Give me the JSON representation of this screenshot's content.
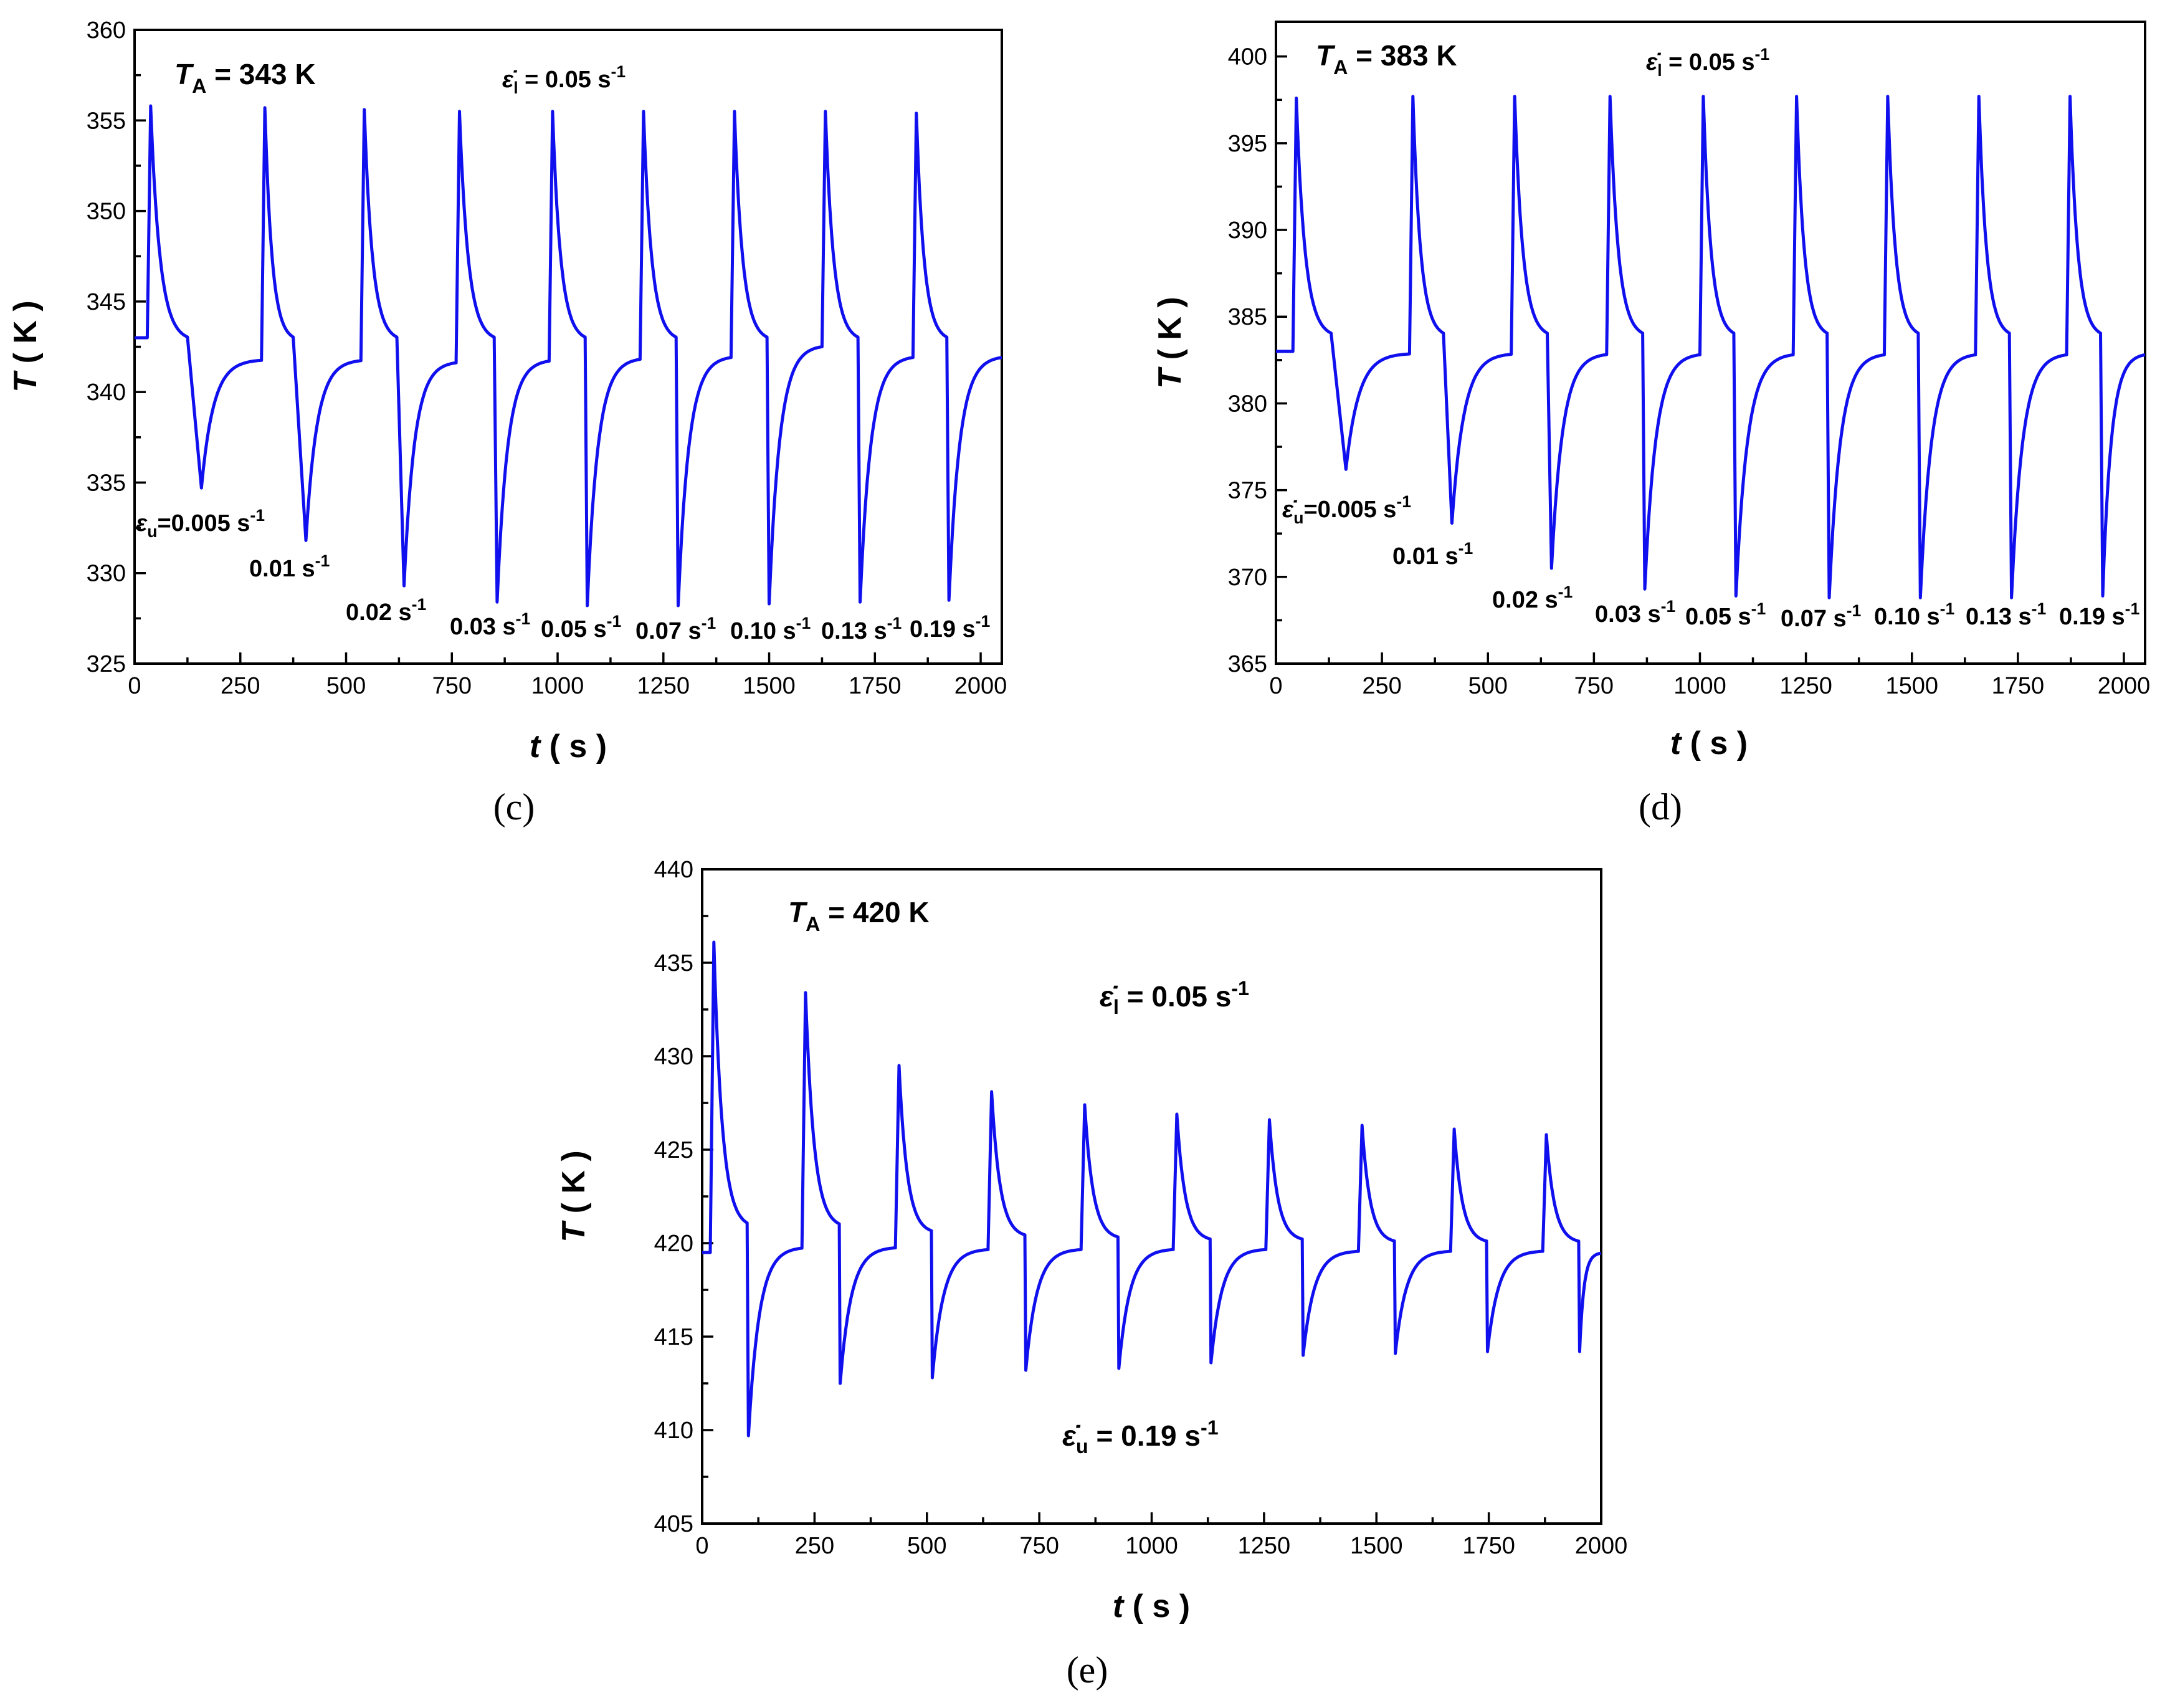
{
  "charts": {
    "c": {
      "panel_label": "(c)",
      "title_var": "T",
      "title_sub": "A",
      "title_rest": " = 343 K",
      "loading_var": "ε̇",
      "loading_sub": "l",
      "loading_rest": " = 0.05 s",
      "loading_sup": "-1",
      "unloading_var": "ε",
      "unloading_sub": "u",
      "unloading_first": "=0.005 s",
      "unloading_first_sup": "-1",
      "rate_labels": [
        "0.01 s",
        "0.02 s",
        "0.03 s",
        "0.05 s",
        "0.07 s",
        "0.10 s",
        "0.13 s",
        "0.19 s"
      ],
      "rate_sup": "-1",
      "ylabel_var": "T",
      "ylabel_rest": " ( K )",
      "xlabel_var": "t",
      "xlabel_rest": " ( s )"
    },
    "d": {
      "panel_label": "(d)",
      "title_var": "T",
      "title_sub": "A",
      "title_rest": " = 383 K",
      "loading_var": "ε̇",
      "loading_sub": "l",
      "loading_rest": " = 0.05 s",
      "loading_sup": "-1",
      "unloading_var": "ε̇",
      "unloading_sub": "u",
      "unloading_first": "=0.005 s",
      "unloading_first_sup": "-1",
      "rate_labels": [
        "0.01 s",
        "0.02 s",
        "0.03 s",
        "0.05 s",
        "0.07 s",
        "0.10 s",
        "0.13 s",
        "0.19 s"
      ],
      "rate_sup": "-1",
      "ylabel_var": "T",
      "ylabel_rest": " ( K )",
      "xlabel_var": "t",
      "xlabel_rest": " ( s )"
    },
    "e": {
      "panel_label": "(e)",
      "title_var": "T",
      "title_sub": "A",
      "title_rest": " = 420 K",
      "loading_var": "ε̇",
      "loading_sub": "l",
      "loading_rest": " = 0.05 s",
      "loading_sup": "-1",
      "unloading_var": "ε̇",
      "unloading_sub": "u",
      "unloading_rest": " = 0.19 s",
      "unloading_sup": "-1",
      "ylabel_var": "T",
      "ylabel_rest": " ( K )",
      "xlabel_var": "t",
      "xlabel_rest": " ( s )"
    }
  },
  "chart_data": [
    {
      "id": "c",
      "type": "line",
      "title": "T_A = 343 K",
      "xlabel": "t ( s )",
      "ylabel": "T ( K )",
      "xlim": [
        0,
        2050
      ],
      "ylim": [
        325,
        360
      ],
      "xticks": [
        0,
        250,
        500,
        750,
        1000,
        1250,
        1500,
        1750,
        2000
      ],
      "yticks": [
        325,
        330,
        335,
        340,
        345,
        350,
        355,
        360
      ],
      "baseline": 343,
      "annotations": [
        "ε̇_l = 0.05 s^-1",
        "ε_u =0.005 s^-1",
        "0.01 s^-1",
        "0.02 s^-1",
        "0.03 s^-1",
        "0.05 s^-1",
        "0.07 s^-1",
        "0.10 s^-1",
        "0.13 s^-1",
        "0.19 s^-1"
      ],
      "series": [
        {
          "name": "T",
          "color": "#1010ee",
          "cycles": [
            {
              "t_load": 30,
              "peak": 355.8,
              "t_unload": 125,
              "pre_unload": 342.8,
              "trough": 334.7,
              "t_trough": 158,
              "plateau": 341.8
            },
            {
              "t_load": 300,
              "peak": 355.7,
              "t_unload": 375,
              "pre_unload": 342.8,
              "trough": 331.8,
              "t_trough": 405,
              "plateau": 341.8
            },
            {
              "t_load": 535,
              "peak": 355.6,
              "t_unload": 620,
              "pre_unload": 342.8,
              "trough": 329.3,
              "t_trough": 637,
              "plateau": 341.7
            },
            {
              "t_load": 760,
              "peak": 355.5,
              "t_unload": 850,
              "pre_unload": 342.8,
              "trough": 328.4,
              "t_trough": 857,
              "plateau": 341.8
            },
            {
              "t_load": 980,
              "peak": 355.5,
              "t_unload": 1065,
              "pre_unload": 342.8,
              "trough": 328.2,
              "t_trough": 1070,
              "plateau": 341.9
            },
            {
              "t_load": 1195,
              "peak": 355.5,
              "t_unload": 1280,
              "pre_unload": 342.8,
              "trough": 328.2,
              "t_trough": 1285,
              "plateau": 342.0
            },
            {
              "t_load": 1410,
              "peak": 355.5,
              "t_unload": 1495,
              "pre_unload": 342.8,
              "trough": 328.3,
              "t_trough": 1500,
              "plateau": 342.6
            },
            {
              "t_load": 1625,
              "peak": 355.5,
              "t_unload": 1710,
              "pre_unload": 342.8,
              "trough": 328.4,
              "t_trough": 1715,
              "plateau": 342.0
            },
            {
              "t_load": 1840,
              "peak": 355.4,
              "t_unload": 1920,
              "pre_unload": 342.8,
              "trough": 328.5,
              "t_trough": 1925,
              "plateau": 342.0
            }
          ]
        }
      ]
    },
    {
      "id": "d",
      "type": "line",
      "title": "T_A = 383 K",
      "xlabel": "t ( s )",
      "ylabel": "T ( K )",
      "xlim": [
        0,
        2050
      ],
      "ylim": [
        365,
        402
      ],
      "xticks": [
        0,
        250,
        500,
        750,
        1000,
        1250,
        1500,
        1750,
        2000
      ],
      "yticks": [
        365,
        370,
        375,
        380,
        385,
        390,
        395,
        400
      ],
      "baseline": 383,
      "annotations": [
        "ε̇_l = 0.05 s^-1",
        "ε̇_u =0.005 s^-1",
        "0.01 s^-1",
        "0.02 s^-1",
        "0.03 s^-1",
        "0.05 s^-1",
        "0.07 s^-1",
        "0.10 s^-1",
        "0.13 s^-1",
        "0.19 s^-1"
      ],
      "series": [
        {
          "name": "T",
          "color": "#1010ee",
          "cycles": [
            {
              "t_load": 40,
              "peak": 397.6,
              "t_unload": 130,
              "pre_unload": 383.8,
              "trough": 376.2,
              "t_trough": 165,
              "plateau": 382.9
            },
            {
              "t_load": 315,
              "peak": 397.7,
              "t_unload": 395,
              "pre_unload": 383.8,
              "trough": 373.1,
              "t_trough": 415,
              "plateau": 382.9
            },
            {
              "t_load": 555,
              "peak": 397.7,
              "t_unload": 640,
              "pre_unload": 383.8,
              "trough": 370.5,
              "t_trough": 650,
              "plateau": 382.9
            },
            {
              "t_load": 780,
              "peak": 397.7,
              "t_unload": 865,
              "pre_unload": 383.8,
              "trough": 369.3,
              "t_trough": 870,
              "plateau": 382.9
            },
            {
              "t_load": 1000,
              "peak": 397.7,
              "t_unload": 1080,
              "pre_unload": 383.8,
              "trough": 368.9,
              "t_trough": 1085,
              "plateau": 382.9
            },
            {
              "t_load": 1220,
              "peak": 397.7,
              "t_unload": 1300,
              "pre_unload": 383.8,
              "trough": 368.8,
              "t_trough": 1305,
              "plateau": 382.9
            },
            {
              "t_load": 1435,
              "peak": 397.7,
              "t_unload": 1515,
              "pre_unload": 383.8,
              "trough": 368.8,
              "t_trough": 1520,
              "plateau": 382.9
            },
            {
              "t_load": 1650,
              "peak": 397.7,
              "t_unload": 1730,
              "pre_unload": 383.8,
              "trough": 368.8,
              "t_trough": 1735,
              "plateau": 382.9
            },
            {
              "t_load": 1865,
              "peak": 397.7,
              "t_unload": 1945,
              "pre_unload": 383.8,
              "trough": 368.9,
              "t_trough": 1950,
              "plateau": 382.9
            }
          ]
        }
      ]
    },
    {
      "id": "e",
      "type": "line",
      "title": "T_A = 420 K",
      "xlabel": "t ( s )",
      "ylabel": "T ( K )",
      "xlim": [
        0,
        2000
      ],
      "ylim": [
        405,
        440
      ],
      "xticks": [
        0,
        250,
        500,
        750,
        1000,
        1250,
        1500,
        1750,
        2000
      ],
      "yticks": [
        405,
        410,
        415,
        420,
        425,
        430,
        435,
        440
      ],
      "baseline": 419.5,
      "annotations": [
        "ε̇_l = 0.05 s^-1",
        "ε̇_u = 0.19 s^-1"
      ],
      "series": [
        {
          "name": "T",
          "color": "#1010ee",
          "cycles": [
            {
              "t_load": 18,
              "peak": 436.1,
              "t_unload": 100,
              "pre_unload": 420.8,
              "trough": 409.7,
              "t_trough": 103,
              "plateau": 419.8
            },
            {
              "t_load": 222,
              "peak": 433.4,
              "t_unload": 305,
              "pre_unload": 420.8,
              "trough": 412.5,
              "t_trough": 307,
              "plateau": 419.8
            },
            {
              "t_load": 430,
              "peak": 429.5,
              "t_unload": 510,
              "pre_unload": 420.5,
              "trough": 412.8,
              "t_trough": 512,
              "plateau": 419.7
            },
            {
              "t_load": 636,
              "peak": 428.1,
              "t_unload": 718,
              "pre_unload": 420.3,
              "trough": 413.2,
              "t_trough": 720,
              "plateau": 419.7
            },
            {
              "t_load": 843,
              "peak": 427.4,
              "t_unload": 925,
              "pre_unload": 420.2,
              "trough": 413.3,
              "t_trough": 927,
              "plateau": 419.7
            },
            {
              "t_load": 1048,
              "peak": 426.9,
              "t_unload": 1130,
              "pre_unload": 420.1,
              "trough": 413.6,
              "t_trough": 1132,
              "plateau": 419.7
            },
            {
              "t_load": 1254,
              "peak": 426.6,
              "t_unload": 1335,
              "pre_unload": 420.1,
              "trough": 414.0,
              "t_trough": 1337,
              "plateau": 419.6
            },
            {
              "t_load": 1460,
              "peak": 426.3,
              "t_unload": 1540,
              "pre_unload": 420.0,
              "trough": 414.1,
              "t_trough": 1542,
              "plateau": 419.6
            },
            {
              "t_load": 1665,
              "peak": 426.1,
              "t_unload": 1745,
              "pre_unload": 420.0,
              "trough": 414.2,
              "t_trough": 1747,
              "plateau": 419.6
            },
            {
              "t_load": 1870,
              "peak": 425.8,
              "t_unload": 1950,
              "pre_unload": 420.0,
              "trough": 414.2,
              "t_trough": 1952,
              "plateau": 419.5
            }
          ]
        }
      ]
    }
  ]
}
